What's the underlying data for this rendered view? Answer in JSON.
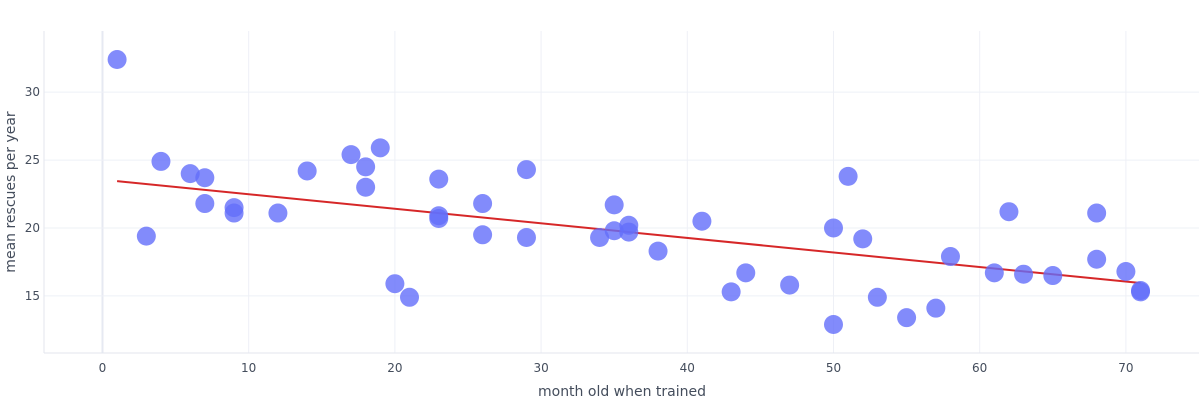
{
  "chart_data": {
    "type": "scatter",
    "xlabel": "month old when trained",
    "ylabel": "mean rescues per year",
    "xlim": [
      -4,
      75
    ],
    "ylim": [
      10.8,
      34.5
    ],
    "x_ticks": [
      0,
      10,
      20,
      30,
      40,
      50,
      60,
      70
    ],
    "y_ticks": [
      15,
      20,
      25,
      30
    ],
    "grid": true,
    "legend": "none",
    "colors": {
      "points": "#636efa",
      "trendline": "#d62728",
      "grid": "#eef0f6",
      "text": "#444d5c"
    },
    "series": [
      {
        "type": "scatter",
        "x": [
          1,
          3,
          4,
          6,
          7,
          7,
          9,
          9,
          12,
          14,
          17,
          18,
          18,
          19,
          20,
          21,
          23,
          23,
          23,
          26,
          26,
          29,
          29,
          34,
          35,
          35,
          36,
          36,
          38,
          41,
          43,
          44,
          47,
          50,
          50,
          51,
          52,
          53,
          55,
          57,
          58,
          61,
          62,
          63,
          65,
          68,
          68,
          70,
          71,
          71
        ],
        "y": [
          32.4,
          19.4,
          24.9,
          24.0,
          23.7,
          21.8,
          21.5,
          21.1,
          21.1,
          24.2,
          25.4,
          24.5,
          23.0,
          25.9,
          15.9,
          14.9,
          23.6,
          20.9,
          20.7,
          21.8,
          19.5,
          24.3,
          19.3,
          19.3,
          21.7,
          19.8,
          20.2,
          19.7,
          18.3,
          20.5,
          15.3,
          16.7,
          15.8,
          20.0,
          12.9,
          23.8,
          19.2,
          14.9,
          13.4,
          14.1,
          17.9,
          16.7,
          21.2,
          16.6,
          16.5,
          21.1,
          17.7,
          16.8,
          15.4,
          15.3
        ]
      },
      {
        "type": "line",
        "x": [
          1,
          71
        ],
        "y": [
          23.45,
          15.95
        ]
      }
    ]
  }
}
